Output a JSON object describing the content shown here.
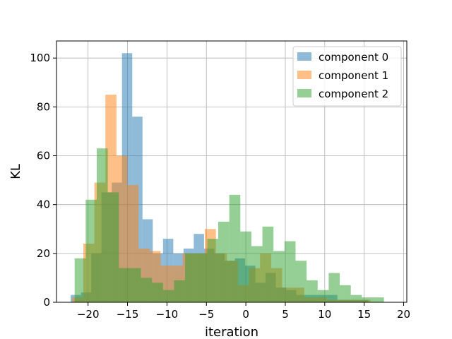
{
  "chart_data": {
    "type": "histogram",
    "xlabel": "iteration",
    "ylabel": "KL",
    "xlim": [
      -24,
      20.4
    ],
    "ylim": [
      0,
      107
    ],
    "xticks": [
      -20,
      -15,
      -10,
      -5,
      0,
      5,
      10,
      15,
      20
    ],
    "yticks": [
      0,
      20,
      40,
      60,
      80,
      100
    ],
    "grid": true,
    "legend_position": "top-right",
    "series": [
      {
        "name": "component 0",
        "color": "#1f77b4",
        "alpha": 0.5,
        "bins": [
          -22.2,
          -20.9,
          -19.6,
          -18.3,
          -17.0,
          -15.7,
          -14.4,
          -13.1,
          -11.8,
          -10.5,
          -9.2,
          -7.9,
          -6.6,
          -5.3,
          -4.0,
          -2.7,
          -1.4,
          -0.1,
          1.2,
          2.5,
          3.8,
          5.1,
          6.4,
          7.7,
          9.0,
          10.3,
          11.6,
          12.9,
          14.2,
          15.5
        ],
        "values": [
          3,
          4,
          20,
          45,
          49,
          102,
          76,
          34,
          20,
          26,
          20,
          22,
          28,
          22,
          20,
          17,
          18,
          15,
          8,
          12,
          6,
          5,
          3,
          3,
          3,
          3,
          1,
          1,
          1
        ]
      },
      {
        "name": "component 1",
        "color": "#ff7f0e",
        "alpha": 0.5,
        "bins": [
          -22.0,
          -20.6,
          -19.2,
          -17.8,
          -16.4,
          -15.0,
          -13.6,
          -12.2,
          -10.8,
          -9.4,
          -8.0,
          -6.6,
          -5.2,
          -3.8,
          -2.4,
          -1.0,
          0.4,
          1.8,
          3.2,
          4.6,
          6.0,
          7.4,
          8.8,
          10.2,
          11.6,
          13.0,
          14.4,
          15.8
        ],
        "values": [
          2,
          24,
          49,
          85,
          60,
          48,
          22,
          21,
          15,
          15,
          20,
          20,
          30,
          20,
          17,
          7,
          14,
          20,
          14,
          6,
          6,
          2,
          2,
          1,
          1,
          1,
          1
        ]
      },
      {
        "name": "component 2",
        "color": "#2ca02c",
        "alpha": 0.5,
        "bins": [
          -21.7,
          -20.3,
          -18.9,
          -17.5,
          -16.1,
          -14.7,
          -13.3,
          -11.9,
          -10.5,
          -9.1,
          -7.7,
          -6.3,
          -4.9,
          -3.5,
          -2.1,
          -0.7,
          0.7,
          2.1,
          3.5,
          4.9,
          6.3,
          7.7,
          9.1,
          10.5,
          11.9,
          13.3,
          14.7,
          16.1,
          17.5
        ],
        "values": [
          18,
          42,
          63,
          45,
          14,
          14,
          10,
          8,
          5,
          9,
          20,
          20,
          26,
          33,
          44,
          29,
          23,
          31,
          21,
          25,
          17,
          9,
          5,
          12,
          7,
          3,
          2,
          2
        ]
      }
    ]
  }
}
